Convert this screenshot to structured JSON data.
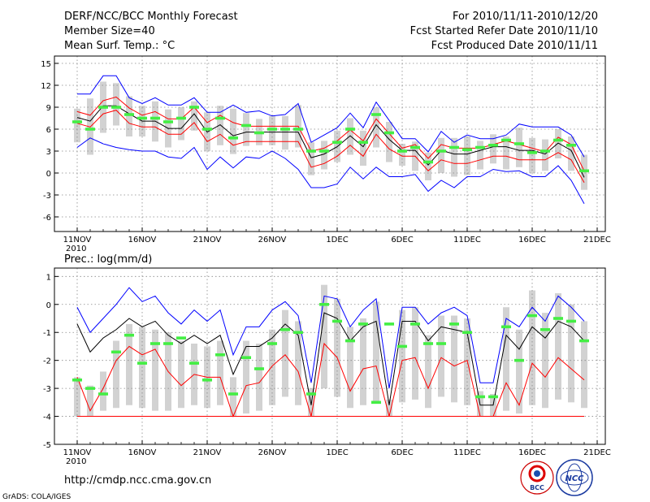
{
  "header": {
    "title": "DERF/NCC/BCC Monthly Forecast",
    "member_size": "Member Size=40",
    "variable": "Mean Surf. Temp.: °C",
    "period": "For 2010/11/11-2010/12/20",
    "fcst_started": "Fcst Started Refer Date 2010/11/10",
    "fcst_produced": "Fcst Produced Date 2010/11/11"
  },
  "footer": {
    "url": "http://cmdp.ncc.cma.gov.cn",
    "grads_credit": "GrADS: COLA/IGES",
    "logo_bcc": "BCC",
    "logo_ncc": "NCC"
  },
  "colors": {
    "max_line": "#0000ff",
    "min_line": "#ff0000",
    "mean_line": "#000000",
    "red_band": "#ff0000",
    "marker": "#44ee44",
    "box": "#d2d2d2",
    "grid": "#888888"
  },
  "chart_data": [
    {
      "id": "temperature",
      "type": "line",
      "ylabel": "Mean Surf. Temp.: °C",
      "ylim": [
        -8,
        16
      ],
      "yticks": [
        15,
        12,
        9,
        6,
        3,
        0,
        -3,
        -6
      ],
      "xlim": [
        0,
        40
      ],
      "xticks": [
        {
          "x": 0,
          "label": "11NOV",
          "sub": "2010"
        },
        {
          "x": 5,
          "label": "16NOV"
        },
        {
          "x": 10,
          "label": "21NOV"
        },
        {
          "x": 15,
          "label": "26NOV"
        },
        {
          "x": 20,
          "label": "1DEC"
        },
        {
          "x": 25,
          "label": "6DEC"
        },
        {
          "x": 30,
          "label": "11DEC"
        },
        {
          "x": 35,
          "label": "16DEC"
        },
        {
          "x": 40,
          "label": "21DEC"
        }
      ],
      "x": [
        0,
        1,
        2,
        3,
        4,
        5,
        6,
        7,
        8,
        9,
        10,
        11,
        12,
        13,
        14,
        15,
        16,
        17,
        18,
        19,
        20,
        21,
        22,
        23,
        24,
        25,
        26,
        27,
        28,
        29,
        30,
        31,
        32,
        33,
        34,
        35,
        36,
        37,
        38,
        39
      ],
      "series": [
        {
          "name": "max",
          "color_key": "max_line",
          "values": [
            10.8,
            10.8,
            13.3,
            13.3,
            10.3,
            9.5,
            10.3,
            9.3,
            9.3,
            10.3,
            8.3,
            8.3,
            9.3,
            8.3,
            8.5,
            7.8,
            8.0,
            9.5,
            4.2,
            5.2,
            6.2,
            8.2,
            6.2,
            9.7,
            7.2,
            4.7,
            4.7,
            2.9,
            5.7,
            4.2,
            5.2,
            4.7,
            4.7,
            5.2,
            6.7,
            6.3,
            6.3,
            6.3,
            5.2,
            2.2
          ]
        },
        {
          "name": "red_upper",
          "color_key": "red_band",
          "values": [
            8.4,
            7.9,
            9.9,
            10.4,
            8.9,
            7.9,
            8.4,
            7.4,
            7.4,
            9.0,
            6.9,
            7.9,
            6.9,
            6.4,
            6.4,
            6.4,
            6.4,
            6.4,
            3.0,
            3.4,
            4.4,
            5.9,
            4.4,
            7.4,
            5.4,
            3.4,
            3.9,
            2.0,
            3.9,
            3.4,
            3.4,
            3.4,
            3.9,
            4.4,
            3.9,
            3.4,
            2.9,
            4.9,
            3.9,
            0.3
          ]
        },
        {
          "name": "mean",
          "color_key": "mean_line",
          "values": [
            7.6,
            7.1,
            9.2,
            9.2,
            8.1,
            7.1,
            7.1,
            6.1,
            6.1,
            8.1,
            5.6,
            6.6,
            5.1,
            5.6,
            5.6,
            5.6,
            5.6,
            5.6,
            2.1,
            2.6,
            3.6,
            5.1,
            3.6,
            6.6,
            4.6,
            3.1,
            3.1,
            1.1,
            3.1,
            2.6,
            2.6,
            3.1,
            3.6,
            3.6,
            3.1,
            3.1,
            2.6,
            4.1,
            3.1,
            -0.6
          ]
        },
        {
          "name": "red_lower",
          "color_key": "red_band",
          "values": [
            6.8,
            6.3,
            8.1,
            8.6,
            6.8,
            6.3,
            6.3,
            5.3,
            5.3,
            6.9,
            4.3,
            5.3,
            3.8,
            4.3,
            4.3,
            4.3,
            4.3,
            4.3,
            0.8,
            1.3,
            2.3,
            3.8,
            2.3,
            5.3,
            3.3,
            2.3,
            2.3,
            0.3,
            1.8,
            1.3,
            1.3,
            1.8,
            2.3,
            2.3,
            1.8,
            1.8,
            1.8,
            2.8,
            1.8,
            -1.3
          ]
        },
        {
          "name": "min",
          "color_key": "max_line",
          "values": [
            3.5,
            4.8,
            4.0,
            3.5,
            3.2,
            3.0,
            3.0,
            2.2,
            2.0,
            3.5,
            0.5,
            2.2,
            0.7,
            2.2,
            2.0,
            3.0,
            2.0,
            0.5,
            -2.0,
            -2.0,
            -1.5,
            0.8,
            -0.8,
            0.8,
            -0.5,
            -0.5,
            -0.2,
            -2.5,
            -1.0,
            -2.0,
            -0.5,
            -0.5,
            0.5,
            0.2,
            0.3,
            -0.5,
            -0.5,
            1.0,
            -1.0,
            -4.2
          ]
        }
      ],
      "boxes": [
        {
          "lo": 4.2,
          "hi": 8.8
        },
        {
          "lo": 2.5,
          "hi": 10.2
        },
        {
          "lo": 5.5,
          "hi": 12.5
        },
        {
          "lo": 6.5,
          "hi": 12.3
        },
        {
          "lo": 5.0,
          "hi": 10.5
        },
        {
          "lo": 5.0,
          "hi": 9.2
        },
        {
          "lo": 4.3,
          "hi": 9.8
        },
        {
          "lo": 3.5,
          "hi": 8.7
        },
        {
          "lo": 4.5,
          "hi": 9.0
        },
        {
          "lo": 5.8,
          "hi": 9.8
        },
        {
          "lo": 3.0,
          "hi": 8.3
        },
        {
          "lo": 3.8,
          "hi": 9.2
        },
        {
          "lo": 2.6,
          "hi": 8.8
        },
        {
          "lo": 3.7,
          "hi": 8.2
        },
        {
          "lo": 3.8,
          "hi": 7.4
        },
        {
          "lo": 3.8,
          "hi": 7.8
        },
        {
          "lo": 3.2,
          "hi": 7.8
        },
        {
          "lo": 3.5,
          "hi": 9.3
        },
        {
          "lo": -0.3,
          "hi": 4.2
        },
        {
          "lo": 0.5,
          "hi": 4.4
        },
        {
          "lo": 1.5,
          "hi": 5.8
        },
        {
          "lo": 2.5,
          "hi": 7.5
        },
        {
          "lo": 1.0,
          "hi": 5.8
        },
        {
          "lo": 3.5,
          "hi": 9.0
        },
        {
          "lo": 1.5,
          "hi": 7.0
        },
        {
          "lo": 1.0,
          "hi": 4.0
        },
        {
          "lo": 0.3,
          "hi": 4.3
        },
        {
          "lo": -1.0,
          "hi": 2.8
        },
        {
          "lo": 0.0,
          "hi": 4.8
        },
        {
          "lo": -0.5,
          "hi": 4.8
        },
        {
          "lo": -0.3,
          "hi": 5.0
        },
        {
          "lo": 0.5,
          "hi": 4.4
        },
        {
          "lo": 1.3,
          "hi": 5.3
        },
        {
          "lo": 0.5,
          "hi": 5.0
        },
        {
          "lo": 0.8,
          "hi": 6.2
        },
        {
          "lo": 0.0,
          "hi": 4.8
        },
        {
          "lo": 0.3,
          "hi": 4.6
        },
        {
          "lo": 2.0,
          "hi": 6.0
        },
        {
          "lo": 0.3,
          "hi": 5.0
        },
        {
          "lo": -2.3,
          "hi": 2.5
        }
      ],
      "markers": [
        7.0,
        6.0,
        9.0,
        9.0,
        8.0,
        7.5,
        7.5,
        7.0,
        7.5,
        9.0,
        6.0,
        7.5,
        4.8,
        6.5,
        5.5,
        6.0,
        6.0,
        6.0,
        3.0,
        3.0,
        4.2,
        6.0,
        4.2,
        8.0,
        5.5,
        3.0,
        3.5,
        1.5,
        3.0,
        3.5,
        3.2,
        3.5,
        3.8,
        4.5,
        4.0,
        2.8,
        3.0,
        4.5,
        3.8,
        0.3
      ]
    },
    {
      "id": "precipitation",
      "type": "line",
      "ylabel": "Prec.: log(mm/d)",
      "ylim": [
        -5,
        1.3
      ],
      "yticks": [
        1,
        0,
        -1,
        -2,
        -3,
        -4,
        -5
      ],
      "xlim": [
        0,
        40
      ],
      "xticks": [
        {
          "x": 0,
          "label": "11NOV",
          "sub": "2010"
        },
        {
          "x": 5,
          "label": "16NOV"
        },
        {
          "x": 10,
          "label": "21NOV"
        },
        {
          "x": 15,
          "label": "26NOV"
        },
        {
          "x": 20,
          "label": "1DEC"
        },
        {
          "x": 25,
          "label": "6DEC"
        },
        {
          "x": 30,
          "label": "11DEC"
        },
        {
          "x": 35,
          "label": "16DEC"
        },
        {
          "x": 40,
          "label": "21DEC"
        }
      ],
      "x": [
        0,
        1,
        2,
        3,
        4,
        5,
        6,
        7,
        8,
        9,
        10,
        11,
        12,
        13,
        14,
        15,
        16,
        17,
        18,
        19,
        20,
        21,
        22,
        23,
        24,
        25,
        26,
        27,
        28,
        29,
        30,
        31,
        32,
        33,
        34,
        35,
        36,
        37,
        38,
        39
      ],
      "series": [
        {
          "name": "max",
          "color_key": "max_line",
          "values": [
            -0.1,
            -1.0,
            -0.5,
            0.0,
            0.6,
            0.1,
            0.3,
            -0.3,
            -0.7,
            -0.2,
            -0.6,
            -0.2,
            -1.8,
            -0.8,
            -0.8,
            -0.2,
            0.1,
            -0.4,
            -2.8,
            0.3,
            0.2,
            -0.8,
            -0.2,
            0.2,
            -3.0,
            -0.1,
            -0.1,
            -0.7,
            -0.3,
            -0.1,
            -0.4,
            -2.8,
            -2.8,
            -0.5,
            -0.8,
            -0.1,
            -0.6,
            0.3,
            -0.1,
            -0.6
          ]
        },
        {
          "name": "mean",
          "color_key": "mean_line",
          "values": [
            -0.7,
            -1.7,
            -1.2,
            -0.9,
            -0.5,
            -0.8,
            -0.6,
            -1.1,
            -1.4,
            -1.1,
            -1.4,
            -1.1,
            -2.5,
            -1.5,
            -1.5,
            -1.2,
            -0.7,
            -1.1,
            -3.6,
            -0.3,
            -0.5,
            -1.3,
            -0.8,
            -0.6,
            -3.6,
            -0.6,
            -0.6,
            -1.3,
            -0.8,
            -0.9,
            -1.0,
            -3.6,
            -3.6,
            -1.1,
            -1.6,
            -0.8,
            -1.2,
            -0.6,
            -0.8,
            -1.3
          ]
        },
        {
          "name": "min_red",
          "color_key": "min_line",
          "values": [
            -2.6,
            -3.8,
            -3.0,
            -2.0,
            -1.5,
            -1.8,
            -1.6,
            -2.4,
            -2.9,
            -2.5,
            -2.6,
            -2.6,
            -4.0,
            -2.9,
            -2.8,
            -2.2,
            -1.8,
            -2.4,
            -4.0,
            -1.4,
            -1.9,
            -3.1,
            -2.3,
            -2.2,
            -4.0,
            -2.0,
            -1.9,
            -3.0,
            -1.9,
            -2.2,
            -2.0,
            -4.0,
            -4.0,
            -2.8,
            -3.6,
            -2.1,
            -2.6,
            -1.9,
            -2.3,
            -2.7
          ]
        },
        {
          "name": "floor",
          "color_key": "min_line",
          "values": [
            -4,
            -4,
            -4,
            -4,
            -4,
            -4,
            -4,
            -4,
            -4,
            -4,
            -4,
            -4,
            -4,
            -4,
            -4,
            -4,
            -4,
            -4,
            -4,
            -4,
            -4,
            -4,
            -4,
            -4,
            -4,
            -4,
            -4,
            -4,
            -4,
            -4,
            -4,
            -4,
            -4,
            -4,
            -4,
            -4,
            -4,
            -4,
            -4,
            -4
          ]
        }
      ],
      "boxes": [
        {
          "lo": -4.0,
          "hi": -2.6
        },
        {
          "lo": -4.0,
          "hi": -2.9
        },
        {
          "lo": -3.8,
          "hi": -2.4
        },
        {
          "lo": -3.7,
          "hi": -1.3
        },
        {
          "lo": -3.6,
          "hi": -0.7
        },
        {
          "lo": -3.7,
          "hi": -0.8
        },
        {
          "lo": -3.8,
          "hi": -0.9
        },
        {
          "lo": -3.8,
          "hi": -1.0
        },
        {
          "lo": -3.7,
          "hi": -1.3
        },
        {
          "lo": -3.6,
          "hi": -1.4
        },
        {
          "lo": -3.7,
          "hi": -1.5
        },
        {
          "lo": -3.6,
          "hi": -1.3
        },
        {
          "lo": -4.0,
          "hi": -2.6
        },
        {
          "lo": -3.9,
          "hi": -1.3
        },
        {
          "lo": -3.8,
          "hi": -1.4
        },
        {
          "lo": -3.6,
          "hi": -0.9
        },
        {
          "lo": -3.3,
          "hi": -0.2
        },
        {
          "lo": -3.6,
          "hi": -0.6
        },
        {
          "lo": -4.0,
          "hi": -3.0
        },
        {
          "lo": -3.0,
          "hi": 0.7
        },
        {
          "lo": -3.3,
          "hi": 0.2
        },
        {
          "lo": -3.7,
          "hi": -0.8
        },
        {
          "lo": -3.6,
          "hi": -0.5
        },
        {
          "lo": -3.5,
          "hi": 0.1
        },
        {
          "lo": -4.0,
          "hi": -3.4
        },
        {
          "lo": -3.5,
          "hi": -0.2
        },
        {
          "lo": -3.4,
          "hi": -0.1
        },
        {
          "lo": -3.7,
          "hi": -1.1
        },
        {
          "lo": -3.3,
          "hi": -0.4
        },
        {
          "lo": -3.5,
          "hi": -0.4
        },
        {
          "lo": -3.6,
          "hi": -0.5
        },
        {
          "lo": -4.0,
          "hi": -3.1
        },
        {
          "lo": -4.0,
          "hi": -3.2
        },
        {
          "lo": -3.8,
          "hi": -0.1
        },
        {
          "lo": -3.9,
          "hi": -0.9
        },
        {
          "lo": -3.6,
          "hi": 0.5
        },
        {
          "lo": -3.7,
          "hi": -0.3
        },
        {
          "lo": -3.4,
          "hi": 0.4
        },
        {
          "lo": -3.5,
          "hi": 0.0
        },
        {
          "lo": -3.7,
          "hi": -0.6
        }
      ],
      "markers": [
        -2.7,
        -3.0,
        -3.2,
        -1.7,
        -1.1,
        -2.1,
        -1.4,
        -1.4,
        -1.2,
        -2.1,
        -2.7,
        -1.8,
        -3.2,
        -1.9,
        -2.3,
        -1.4,
        -0.9,
        -1.0,
        -3.2,
        0.0,
        -0.6,
        -1.3,
        -0.7,
        -3.5,
        -0.7,
        -1.5,
        -0.7,
        -1.4,
        -1.4,
        -0.7,
        -1.0,
        -3.3,
        -3.3,
        -0.8,
        -2.0,
        -0.4,
        -0.9,
        -0.5,
        -0.6,
        -1.3
      ]
    }
  ]
}
